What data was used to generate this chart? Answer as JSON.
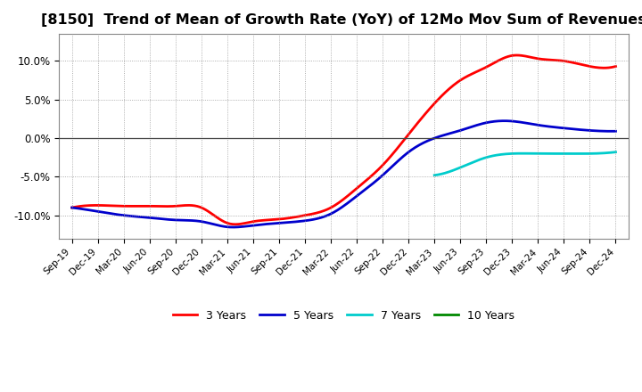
{
  "title": "[8150]  Trend of Mean of Growth Rate (YoY) of 12Mo Mov Sum of Revenues",
  "title_fontsize": 11.5,
  "background_color": "#ffffff",
  "grid_color": "#999999",
  "ylim": [
    -0.13,
    0.135
  ],
  "yticks": [
    -0.1,
    -0.05,
    0.0,
    0.05,
    0.1
  ],
  "legend_labels": [
    "3 Years",
    "5 Years",
    "7 Years",
    "10 Years"
  ],
  "legend_colors": [
    "#ff0000",
    "#0000cc",
    "#00cccc",
    "#008800"
  ],
  "x_labels": [
    "Sep-19",
    "Dec-19",
    "Mar-20",
    "Jun-20",
    "Sep-20",
    "Dec-20",
    "Mar-21",
    "Jun-21",
    "Sep-21",
    "Dec-21",
    "Mar-22",
    "Jun-22",
    "Sep-22",
    "Dec-22",
    "Mar-23",
    "Jun-23",
    "Sep-23",
    "Dec-23",
    "Mar-24",
    "Jun-24",
    "Sep-24",
    "Dec-24"
  ],
  "series_3y_x": [
    0,
    1,
    2,
    3,
    4,
    5,
    6,
    7,
    8,
    9,
    10,
    11,
    12,
    13,
    14,
    15,
    16,
    17,
    18,
    19,
    20,
    21
  ],
  "series_3y_y": [
    -0.09,
    -0.087,
    -0.088,
    -0.088,
    -0.088,
    -0.09,
    -0.11,
    -0.108,
    -0.105,
    -0.1,
    -0.09,
    -0.065,
    -0.035,
    0.005,
    0.045,
    0.075,
    0.092,
    0.107,
    0.103,
    0.1,
    0.093,
    0.093
  ],
  "series_5y_x": [
    0,
    1,
    2,
    3,
    4,
    5,
    6,
    7,
    8,
    9,
    10,
    11,
    12,
    13,
    14,
    15,
    16,
    17,
    18,
    19,
    20,
    21
  ],
  "series_5y_y": [
    -0.09,
    -0.095,
    -0.1,
    -0.103,
    -0.106,
    -0.108,
    -0.115,
    -0.113,
    -0.11,
    -0.107,
    -0.098,
    -0.075,
    -0.048,
    -0.018,
    0.0,
    0.01,
    0.02,
    0.022,
    0.017,
    0.013,
    0.01,
    0.009
  ],
  "series_7y_x": [
    14,
    15,
    16,
    17,
    18,
    19,
    20,
    21
  ],
  "series_7y_y": [
    -0.048,
    -0.038,
    -0.025,
    -0.02,
    -0.02,
    -0.02,
    -0.02,
    -0.018
  ],
  "series_10y_x": [],
  "series_10y_y": []
}
